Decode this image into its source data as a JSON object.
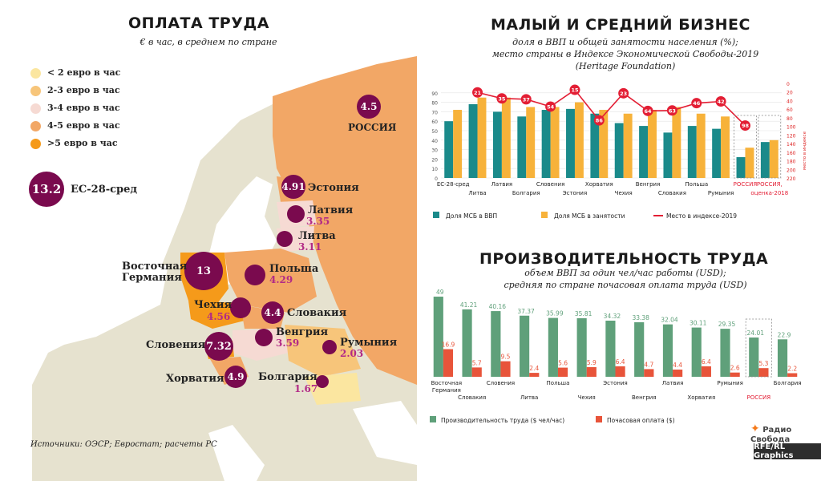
{
  "left": {
    "title": "ОПЛАТА ТРУДА",
    "subtitle": "€ в час, в среднем по стране",
    "legend": [
      {
        "label": "< 2 евро в час",
        "color": "#fbe6a0"
      },
      {
        "label": "2-3 евро в час",
        "color": "#f7c57a"
      },
      {
        "label": "3-4 евро в час",
        "color": "#f6dad3"
      },
      {
        "label": "4-5 евро в час",
        "color": "#f2a766"
      },
      {
        "label": ">5 евро в час",
        "color": "#f59a1a"
      }
    ],
    "eu_value": "13.2",
    "eu_label": "ЕС-28-сред",
    "countries": [
      {
        "name": "РОССИЯ",
        "value": "4.5"
      },
      {
        "name": "Эстония",
        "value": "4.91"
      },
      {
        "name": "Латвия",
        "value": "3.35"
      },
      {
        "name": "Литва",
        "value": "3.11"
      },
      {
        "name": "Восточная Германия",
        "value": "13"
      },
      {
        "name": "Польша",
        "value": "4.29"
      },
      {
        "name": "Чехия",
        "value": "4.56"
      },
      {
        "name": "Словакия",
        "value": "4.4"
      },
      {
        "name": "Венгрия",
        "value": "3.59"
      },
      {
        "name": "Словения",
        "value": "7.32"
      },
      {
        "name": "Румыния",
        "value": "2.03"
      },
      {
        "name": "Хорватия",
        "value": "4.9"
      },
      {
        "name": "Болгария",
        "value": "1.67"
      }
    ],
    "sources": "Источники: ОЭСР; Евростат; расчеты РС"
  },
  "colors": {
    "purple": "#7a0a4e",
    "accent_text": "#b22a86",
    "teal": "#1a8a8a",
    "orange": "#f7b23a",
    "red": "#e31e34",
    "green": "#5fa07a",
    "bar_red": "#e8543a",
    "land": "#e6e2cf",
    "sea": "#ffffff"
  },
  "chart_data": [
    {
      "type": "bar",
      "title": "МАЛЫЙ И СРЕДНИЙ БИЗНЕС",
      "subtitle_lines": [
        "доля в ВВП и общей занятости населения (%);",
        "место страны в Индексе Экономической Свободы-2019",
        "(Heritage Foundation)"
      ],
      "categories": [
        "ЕС-28-сред",
        "Литва",
        "Латвия",
        "Болгария",
        "Словения",
        "Эстония",
        "Хорватия",
        "Чехия",
        "Венгрия",
        "Словакия",
        "Польша",
        "Румыния",
        "РОССИЯ",
        "РОССИЯ, "
      ],
      "x_labels_top": [
        "ЕС-28-сред",
        "Латвия",
        "Словения",
        "Хорватия",
        "Венгрия",
        "Польша",
        "РОССИЯ",
        "РОССИЯ,"
      ],
      "x_labels_bottom": [
        "Литва",
        "Болгария",
        "Эстония",
        "Чехия",
        "Словакия",
        "Румыния",
        "оценка-2018"
      ],
      "series": [
        {
          "name": "Доля МСБ в ВВП",
          "values": [
            60,
            78,
            70,
            65,
            72,
            73,
            68,
            58,
            55,
            48,
            55,
            52,
            22,
            38
          ]
        },
        {
          "name": "Доля МСБ в занятости",
          "values": [
            72,
            85,
            85,
            75,
            75,
            80,
            72,
            68,
            72,
            75,
            68,
            65,
            32,
            40
          ]
        },
        {
          "name": "Место в индексе-2019",
          "values": [
            null,
            21,
            35,
            37,
            54,
            15,
            86,
            23,
            64,
            63,
            46,
            42,
            98,
            null
          ]
        }
      ],
      "y_left_ticks": [
        "0",
        "10",
        "20",
        "30",
        "40",
        "50",
        "60",
        "70",
        "80",
        "90"
      ],
      "y_right_ticks": [
        "0",
        "20",
        "40",
        "60",
        "80",
        "100",
        "120",
        "140",
        "160",
        "180",
        "200",
        "220"
      ],
      "ylim_left": [
        0,
        100
      ],
      "ylim_right": [
        0,
        220
      ],
      "right_axis_label": "место в индексе",
      "legend": [
        "Доля МСБ в ВВП",
        "Доля МСБ в занятости",
        "Место в индексе-2019"
      ]
    },
    {
      "type": "bar",
      "title": "ПРОИЗВОДИТЕЛЬНОСТЬ ТРУДА",
      "subtitle_lines": [
        "объем ВВП за один чел/час работы (USD);",
        "средняя по стране почасовая оплата труда (USD)"
      ],
      "categories": [
        "Восточная Германия",
        "Словакия",
        "Словения",
        "Литва",
        "Польша",
        "Чехия",
        "Эстония",
        "Венгрия",
        "Латвия",
        "Хорватия",
        "Румыния",
        "РОССИЯ",
        "Болгария"
      ],
      "series": [
        {
          "name": "Производительность труда ($ чел/час)",
          "values": [
            49,
            41.21,
            40.16,
            37.37,
            35.99,
            35.81,
            34.32,
            33.38,
            32.04,
            30.11,
            29.35,
            24.01,
            22.9
          ]
        },
        {
          "name": "Почасовая оплата ($)",
          "values": [
            16.9,
            5.7,
            9.5,
            2.4,
            5.6,
            5.9,
            6.4,
            4.7,
            4.4,
            6.4,
            2.6,
            5.3,
            2.2
          ]
        }
      ],
      "value_labels_green": [
        "49",
        "41.21",
        "40.16",
        "37.37",
        "35.99",
        "35.81",
        "34.32",
        "33.38",
        "32.04",
        "30.11",
        "29.35",
        "24.01",
        "22.9"
      ],
      "value_labels_red": [
        "16.9",
        "5.7",
        "9.5",
        "2.4",
        "5.6",
        "5.9",
        "6.4",
        "4.7",
        "4.4",
        "6.4",
        "2.6",
        "5.3",
        "2.2"
      ],
      "legend": [
        "Производительность труда ($ чел/час)",
        "Почасовая оплата ($)"
      ]
    }
  ],
  "branding": {
    "logo": "Радио Свобода",
    "credit": "RFE/RL Graphics"
  }
}
